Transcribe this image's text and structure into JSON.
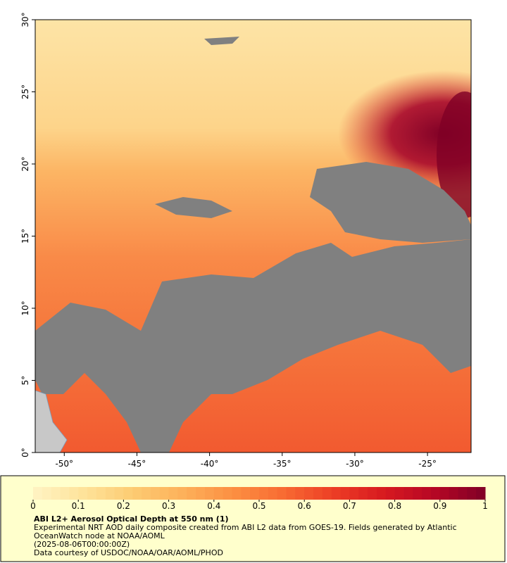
{
  "map": {
    "xlim": [
      -52,
      -22
    ],
    "ylim": [
      0,
      30
    ],
    "xticks": [
      {
        "value": -50,
        "label": "-50°"
      },
      {
        "value": -45,
        "label": "-45°"
      },
      {
        "value": -40,
        "label": "-40°"
      },
      {
        "value": -35,
        "label": "-35°"
      },
      {
        "value": -30,
        "label": "-30°"
      },
      {
        "value": -25,
        "label": "-25°"
      }
    ],
    "yticks": [
      {
        "value": 0,
        "label": "0°"
      },
      {
        "value": 5,
        "label": "5°"
      },
      {
        "value": 10,
        "label": "10°"
      },
      {
        "value": 15,
        "label": "15°"
      },
      {
        "value": 20,
        "label": "20°"
      },
      {
        "value": 25,
        "label": "25°"
      },
      {
        "value": 30,
        "label": "30°"
      }
    ]
  },
  "colorbar": {
    "lim": [
      0,
      1
    ],
    "ticks": [
      0,
      0.1,
      0.2,
      0.3,
      0.4,
      0.5,
      0.6,
      0.7,
      0.8,
      0.9,
      1
    ],
    "colors": [
      "#fff3c4",
      "#fee39a",
      "#fdcb72",
      "#fdb05a",
      "#fc8f42",
      "#f86a32",
      "#ec3d25",
      "#d7191f",
      "#b50725",
      "#7f0026"
    ]
  },
  "caption": {
    "title": "ABI L2+ Aerosol Optical Depth at 550 nm (1)",
    "lines": [
      "Experimental NRT AOD daily composite created from ABI L2 data from GOES-19. Fields generated by Atlantic",
      "OceanWatch node at NOAA/AOML",
      "(2025-08-06T00:00:00Z)",
      "Data courtesy of USDOC/NOAA/OAR/AOML/PHOD"
    ]
  }
}
